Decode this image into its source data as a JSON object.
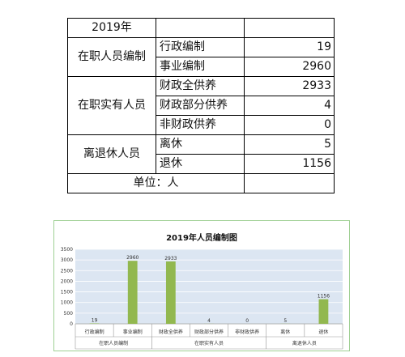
{
  "table": {
    "year": "2019年",
    "unit": "单位：人",
    "groups": [
      {
        "name": "在职人员编制",
        "rows": [
          {
            "label": "行政编制",
            "value": "19"
          },
          {
            "label": "事业编制",
            "value": "2960"
          }
        ]
      },
      {
        "name": "在职实有人员",
        "rows": [
          {
            "label": "财政全供养",
            "value": "2933"
          },
          {
            "label": "财政部分供养",
            "value": "4"
          },
          {
            "label": "非财政供养",
            "value": "0"
          }
        ]
      },
      {
        "name": "离退休人员",
        "rows": [
          {
            "label": "离休",
            "value": "5"
          },
          {
            "label": "退休",
            "value": "1156"
          }
        ]
      }
    ]
  },
  "chart_data": {
    "type": "bar",
    "title": "2019年人员编制图",
    "categories": [
      "行政编制",
      "事业编制",
      "财政全供养",
      "财政部分供养",
      "非财政供养",
      "离休",
      "退休"
    ],
    "values": [
      19,
      2960,
      2933,
      4,
      0,
      5,
      1156
    ],
    "groups": [
      {
        "name": "在职人员编制",
        "span": [
          0,
          1
        ]
      },
      {
        "name": "在职实有人员",
        "span": [
          2,
          4
        ]
      },
      {
        "name": "离退休人员",
        "span": [
          5,
          6
        ]
      }
    ],
    "yticks": [
      0,
      500,
      1000,
      1500,
      2000,
      2500,
      3000,
      3500
    ],
    "ylim": [
      0,
      3500
    ],
    "xlabel": "",
    "ylabel": "",
    "grid": true,
    "bar_color": "#92b84f",
    "plot_background": "#dce6f2",
    "legend": "none"
  }
}
